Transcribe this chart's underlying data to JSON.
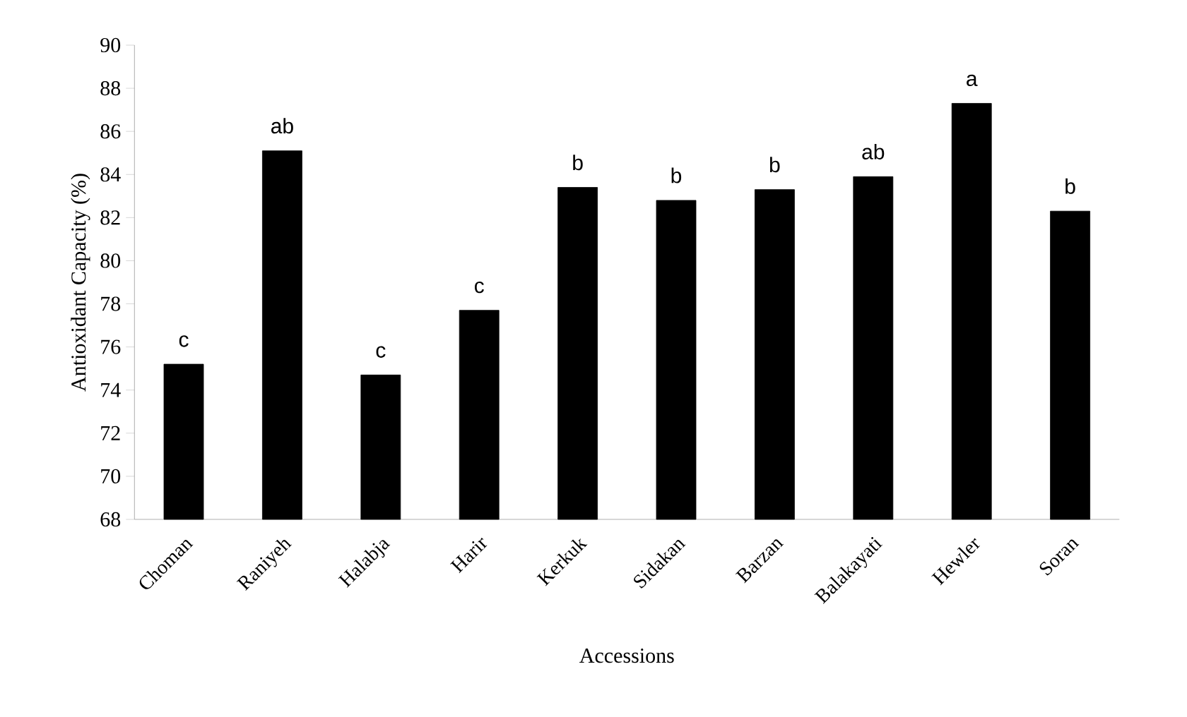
{
  "chart_data": {
    "type": "bar",
    "xlabel": "Accessions",
    "ylabel": "Antioxidant  Capacity (%)",
    "categories": [
      "Choman",
      "Raniyeh",
      "Halabja",
      "Harir",
      "Kerkuk",
      "Sidakan",
      "Barzan",
      "Balakayati",
      "Hewler",
      "Soran"
    ],
    "values": [
      75.2,
      85.1,
      74.7,
      77.7,
      83.4,
      82.8,
      83.3,
      83.9,
      87.3,
      82.3
    ],
    "color": "#000000",
    "ylim": [
      68,
      90
    ],
    "yticks": [
      68,
      70,
      72,
      74,
      76,
      78,
      80,
      82,
      84,
      86,
      88,
      90
    ],
    "annotations": [
      {
        "text": "c",
        "x": "Choman",
        "y": 75.2
      },
      {
        "text": "ab",
        "x": "Raniyeh",
        "y": 85.1
      },
      {
        "text": "c",
        "x": "Halabja",
        "y": 74.7
      },
      {
        "text": "c",
        "x": "Harir",
        "y": 77.7
      },
      {
        "text": "b",
        "x": "Kerkuk",
        "y": 83.4
      },
      {
        "text": "b",
        "x": "Sidakan",
        "y": 82.8
      },
      {
        "text": "b",
        "x": "Barzan",
        "y": 83.3
      },
      {
        "text": "ab",
        "x": "Balakayati",
        "y": 83.9
      },
      {
        "text": "a",
        "x": "Hewler",
        "y": 87.3
      },
      {
        "text": "b",
        "x": "Soran",
        "y": 82.3
      }
    ]
  }
}
